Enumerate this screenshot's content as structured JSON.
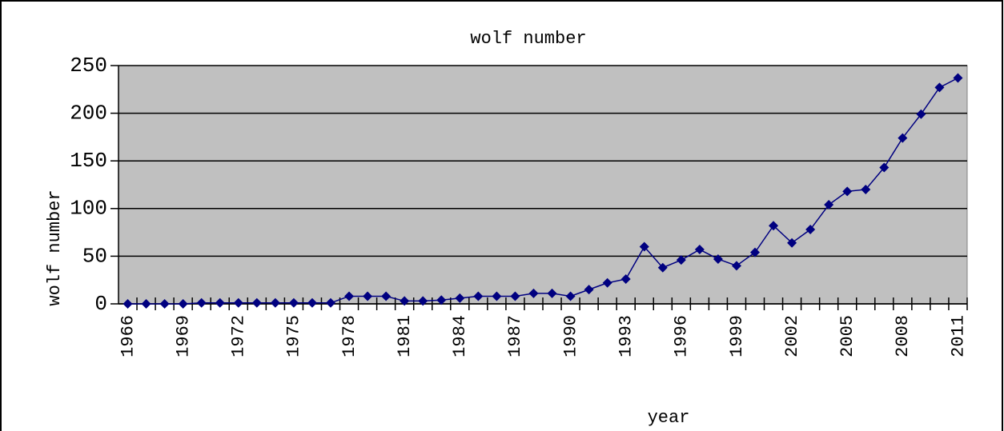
{
  "chart_data": {
    "type": "line",
    "title": "wolf number",
    "x_label": "year",
    "y_label": "wolf number",
    "categories": [
      "1966",
      null,
      null,
      "1969",
      null,
      null,
      "1972",
      null,
      null,
      "1975",
      null,
      null,
      "1978",
      null,
      null,
      "1981",
      null,
      null,
      "1984",
      null,
      null,
      "1987",
      null,
      null,
      "1990",
      null,
      null,
      "1993",
      null,
      null,
      "1996",
      null,
      null,
      "1999",
      null,
      null,
      "2002",
      null,
      null,
      "2005",
      null,
      null,
      "2008",
      null,
      null,
      "2011"
    ],
    "series": [
      {
        "name": "wolf number",
        "color": "#000080",
        "values": [
          0,
          0,
          0,
          0,
          1,
          1,
          1,
          1,
          1,
          1,
          1,
          1,
          8,
          8,
          8,
          3,
          3,
          4,
          6,
          8,
          8,
          8,
          11,
          11,
          8,
          15,
          22,
          26,
          60,
          38,
          46,
          57,
          47,
          40,
          54,
          82,
          64,
          78,
          104,
          118,
          120,
          143,
          174,
          199,
          227,
          237
        ]
      }
    ],
    "ylim": [
      0,
      250
    ],
    "yticks": [
      0,
      50,
      100,
      150,
      200,
      250
    ],
    "grid": true,
    "plot_background": "#c0c0c0"
  }
}
